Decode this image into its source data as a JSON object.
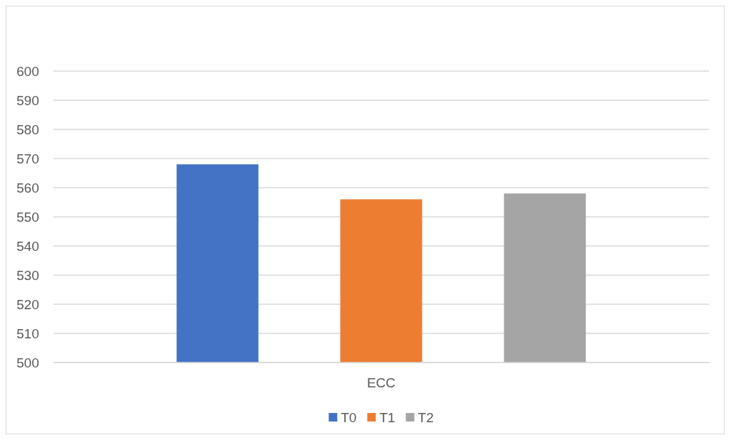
{
  "chart_data": {
    "type": "bar",
    "categories": [
      "ECC"
    ],
    "series": [
      {
        "name": "T0",
        "color": "#4472c4",
        "values": [
          568
        ]
      },
      {
        "name": "T1",
        "color": "#ed7d31",
        "values": [
          556
        ]
      },
      {
        "name": "T2",
        "color": "#a5a5a5",
        "values": [
          558
        ]
      }
    ],
    "ylim": [
      500,
      600
    ],
    "yticks": [
      500,
      510,
      520,
      530,
      540,
      550,
      560,
      570,
      580,
      590,
      600
    ],
    "grid": "y",
    "legend": "bottom"
  }
}
